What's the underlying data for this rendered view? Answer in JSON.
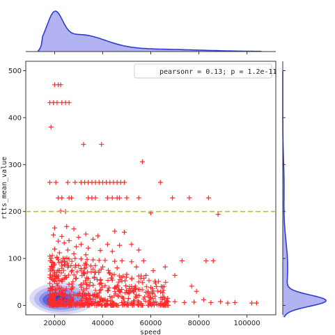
{
  "chart_data": {
    "type": "scatter",
    "title": "",
    "xlabel": "speed",
    "ylabel": "rtts_mean_value",
    "xlim": [
      8000,
      112000
    ],
    "ylim": [
      -20,
      520
    ],
    "xticks": [
      20000,
      40000,
      60000,
      80000,
      100000
    ],
    "xtick_labels": [
      "20000",
      "40000",
      "60000",
      "80000",
      "100000"
    ],
    "yticks": [
      0,
      100,
      200,
      300,
      400,
      500
    ],
    "ytick_labels": [
      "0",
      "100",
      "200",
      "300",
      "400",
      "500"
    ],
    "grid": false,
    "legend_text": "pearsonr = 0.13; p = 1.2e-11",
    "legend_position": "top-right",
    "reference_line": {
      "y": 200,
      "style": "dashed",
      "color": "#bfbf1f"
    },
    "marker": "+",
    "colors": {
      "points": "#ff2a2a",
      "kde_fill": "#b3b3f2",
      "kde_line": "#2b3bd6",
      "kde_dark": "#3344dd",
      "reference": "#bfbf1f"
    },
    "marginal_x": "kde",
    "marginal_y": "kde",
    "points": [
      [
        20000,
        470
      ],
      [
        21500,
        470
      ],
      [
        22500,
        470
      ],
      [
        18000,
        432
      ],
      [
        19500,
        432
      ],
      [
        21000,
        432
      ],
      [
        23000,
        432
      ],
      [
        24500,
        432
      ],
      [
        26000,
        432
      ],
      [
        18500,
        380
      ],
      [
        32000,
        343
      ],
      [
        39500,
        343
      ],
      [
        56500,
        306
      ],
      [
        18000,
        262
      ],
      [
        20500,
        262
      ],
      [
        25500,
        262
      ],
      [
        28500,
        262
      ],
      [
        31000,
        262
      ],
      [
        32500,
        262
      ],
      [
        34000,
        262
      ],
      [
        35500,
        262
      ],
      [
        37000,
        262
      ],
      [
        38500,
        262
      ],
      [
        40000,
        262
      ],
      [
        41500,
        262
      ],
      [
        43000,
        262
      ],
      [
        44500,
        262
      ],
      [
        46000,
        262
      ],
      [
        47500,
        262
      ],
      [
        49000,
        262
      ],
      [
        64000,
        262
      ],
      [
        21500,
        229
      ],
      [
        23000,
        229
      ],
      [
        26000,
        229
      ],
      [
        27000,
        229
      ],
      [
        34000,
        229
      ],
      [
        35500,
        229
      ],
      [
        37000,
        229
      ],
      [
        42000,
        229
      ],
      [
        44000,
        229
      ],
      [
        46000,
        229
      ],
      [
        47000,
        229
      ],
      [
        50000,
        229
      ],
      [
        55000,
        229
      ],
      [
        69000,
        229
      ],
      [
        76000,
        229
      ],
      [
        84000,
        229
      ],
      [
        22500,
        201
      ],
      [
        24500,
        200
      ],
      [
        60000,
        197
      ],
      [
        88000,
        194
      ],
      [
        25000,
        168
      ],
      [
        20000,
        165
      ],
      [
        28000,
        163
      ],
      [
        33000,
        152
      ],
      [
        38000,
        148
      ],
      [
        45000,
        158
      ],
      [
        49000,
        156
      ],
      [
        19500,
        150
      ],
      [
        23000,
        147
      ],
      [
        30000,
        145
      ],
      [
        36000,
        141
      ],
      [
        26000,
        138
      ],
      [
        21500,
        137
      ],
      [
        24000,
        133
      ],
      [
        31000,
        130
      ],
      [
        42000,
        130
      ],
      [
        47000,
        128
      ],
      [
        52000,
        130
      ],
      [
        29000,
        125
      ],
      [
        34000,
        122
      ],
      [
        20000,
        120
      ],
      [
        25500,
        118
      ],
      [
        39000,
        117
      ],
      [
        44000,
        115
      ],
      [
        55000,
        118
      ],
      [
        22000,
        112
      ],
      [
        28000,
        110
      ],
      [
        33000,
        108
      ],
      [
        18500,
        100
      ],
      [
        21000,
        101
      ],
      [
        23500,
        100
      ],
      [
        26000,
        99
      ],
      [
        28500,
        100
      ],
      [
        31000,
        99
      ],
      [
        33500,
        98
      ],
      [
        36000,
        97
      ],
      [
        38500,
        96
      ],
      [
        41000,
        96
      ],
      [
        45000,
        94
      ],
      [
        48000,
        95
      ],
      [
        52000,
        93
      ],
      [
        57000,
        95
      ],
      [
        20000,
        88
      ],
      [
        24000,
        86
      ],
      [
        30000,
        85
      ],
      [
        35000,
        84
      ],
      [
        40000,
        82
      ],
      [
        46000,
        80
      ],
      [
        54000,
        82
      ],
      [
        19000,
        75
      ],
      [
        22000,
        74
      ],
      [
        27000,
        72
      ],
      [
        32000,
        71
      ],
      [
        37000,
        70
      ],
      [
        43000,
        68
      ],
      [
        50000,
        66
      ],
      [
        58000,
        64
      ],
      [
        20500,
        62
      ],
      [
        25000,
        60
      ],
      [
        29000,
        58
      ],
      [
        34000,
        57
      ],
      [
        39000,
        55
      ],
      [
        44000,
        54
      ],
      [
        48000,
        52
      ],
      [
        55000,
        50
      ],
      [
        62000,
        48
      ],
      [
        21000,
        46
      ],
      [
        26000,
        45
      ],
      [
        31000,
        44
      ],
      [
        36000,
        43
      ],
      [
        41000,
        42
      ],
      [
        46000,
        41
      ],
      [
        52000,
        40
      ],
      [
        60000,
        38
      ],
      [
        22000,
        35
      ],
      [
        27000,
        34
      ],
      [
        32000,
        33
      ],
      [
        37000,
        32
      ],
      [
        42000,
        31
      ],
      [
        47000,
        30
      ],
      [
        53000,
        29
      ],
      [
        58000,
        28
      ],
      [
        65000,
        27
      ],
      [
        20000,
        24
      ],
      [
        24000,
        23
      ],
      [
        28000,
        22
      ],
      [
        33000,
        21
      ],
      [
        38000,
        20
      ],
      [
        43000,
        19
      ],
      [
        48000,
        18
      ],
      [
        54000,
        17
      ],
      [
        60000,
        16
      ],
      [
        67000,
        15
      ],
      [
        19000,
        12
      ],
      [
        23000,
        11
      ],
      [
        27000,
        10
      ],
      [
        31000,
        10
      ],
      [
        35000,
        9
      ],
      [
        39000,
        9
      ],
      [
        44000,
        8
      ],
      [
        49000,
        8
      ],
      [
        55000,
        7
      ],
      [
        61000,
        7
      ],
      [
        66000,
        6
      ],
      [
        70000,
        8
      ],
      [
        74000,
        6
      ],
      [
        78000,
        7
      ],
      [
        85000,
        6
      ],
      [
        92000,
        5
      ],
      [
        102000,
        5
      ],
      [
        104000,
        5
      ],
      [
        73000,
        95
      ],
      [
        83000,
        95
      ],
      [
        86000,
        95
      ],
      [
        66000,
        82
      ],
      [
        61000,
        74
      ],
      [
        70000,
        64
      ],
      [
        77000,
        41
      ],
      [
        79000,
        30
      ],
      [
        82000,
        12
      ],
      [
        89000,
        8
      ],
      [
        95000,
        6
      ]
    ]
  }
}
